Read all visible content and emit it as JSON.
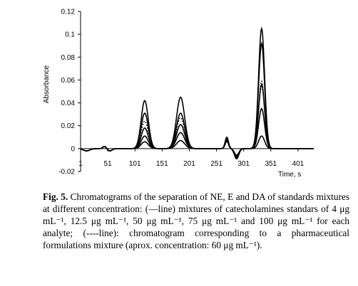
{
  "chart_data": {
    "type": "line",
    "title": "",
    "xlabel": "Time, s",
    "ylabel": "Absorbance",
    "xlim": [
      1,
      430
    ],
    "ylim": [
      -0.02,
      0.12
    ],
    "x_ticks": [
      "1",
      "51",
      "101",
      "151",
      "201",
      "251",
      "301",
      "351",
      "401"
    ],
    "x_tick_values": [
      1,
      51,
      101,
      151,
      201,
      251,
      301,
      351,
      401
    ],
    "y_ticks": [
      "-0.02",
      "0",
      "0.02",
      "0.04",
      "0.06",
      "0.08",
      "0.1",
      "0.12"
    ],
    "y_tick_values": [
      -0.02,
      0,
      0.02,
      0.04,
      0.06,
      0.08,
      0.1,
      0.12
    ],
    "grid": false,
    "peak_times": [
      119,
      185,
      334
    ],
    "series": [
      {
        "style": "solid",
        "peaks": [
          0.006,
          0.007,
          0.011
        ]
      },
      {
        "style": "solid",
        "peaks": [
          0.011,
          0.014,
          0.035
        ]
      },
      {
        "style": "solid",
        "peaks": [
          0.018,
          0.021,
          0.056
        ]
      },
      {
        "style": "solid",
        "peaks": [
          0.031,
          0.031,
          0.092
        ]
      },
      {
        "style": "solid",
        "peaks": [
          0.042,
          0.045,
          0.105
        ]
      },
      {
        "style": "dashed",
        "peaks": [
          0.024,
          0.027,
          0.059
        ]
      }
    ],
    "minor_features": [
      {
        "x": 270,
        "y": 0.01
      },
      {
        "x": 288,
        "y": -0.009
      }
    ]
  },
  "caption": {
    "label": "Fig. 5.",
    "text": "Chromatograms of the separation of NE, E and DA of standards mixtures at different concentration: (—line) mixtures of catecholamines standars of 4 μg mL⁻¹, 12.5 μg mL⁻¹, 50 μg mL⁻¹, 75 μg mL⁻¹ and 100 μg mL⁻¹ for each analyte; (----line): chromatogram corresponding to a pharmaceutical formulations mixture (aprox. concentration: 60 μg mL⁻¹)."
  }
}
